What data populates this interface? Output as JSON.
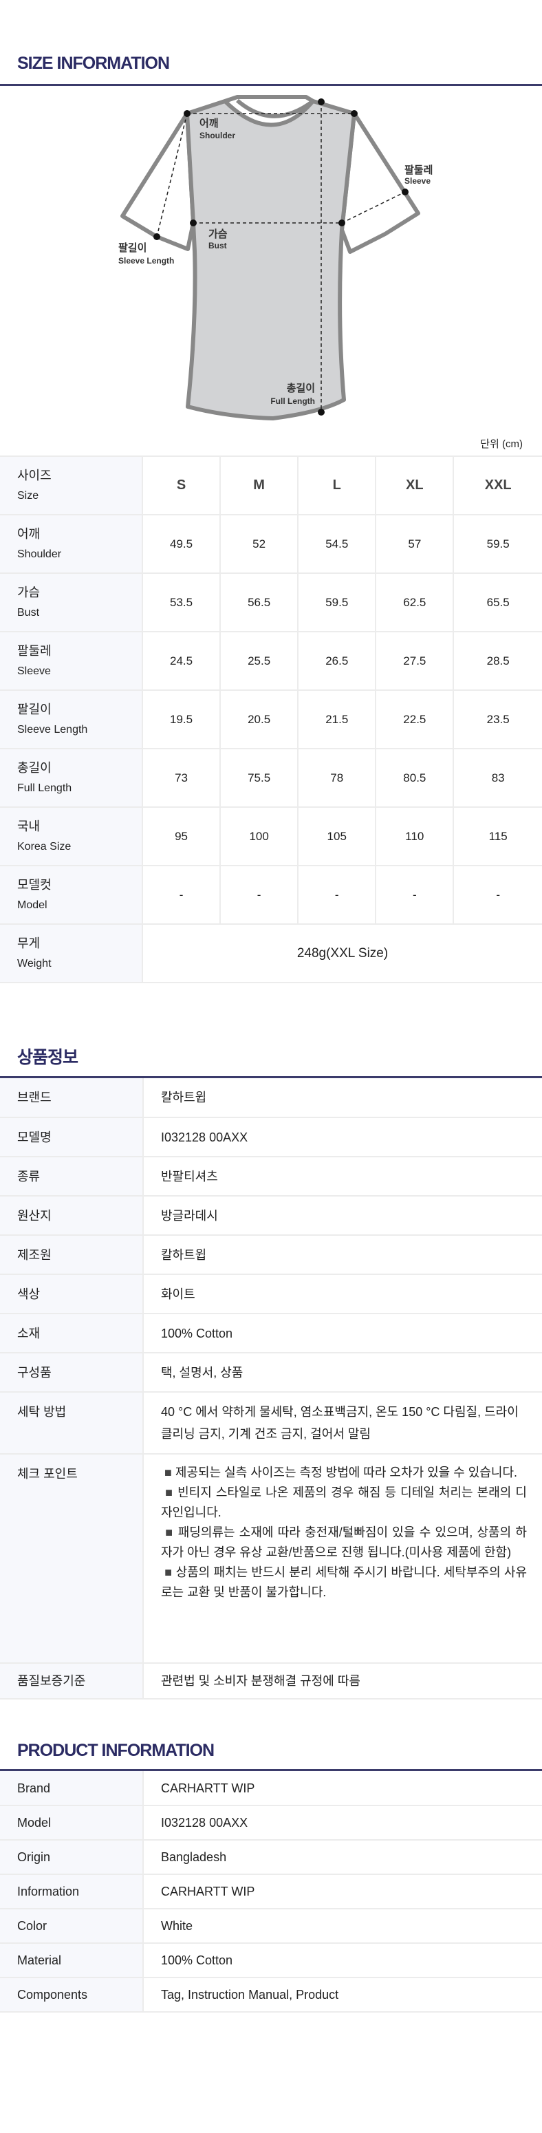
{
  "size_section": {
    "title": "SIZE INFORMATION",
    "unit": "단위 (cm)",
    "diagram_labels": {
      "shoulder": {
        "ko": "어깨",
        "en": "Shoulder"
      },
      "sleeve": {
        "ko": "팔둘레",
        "en": "Sleeve"
      },
      "bust": {
        "ko": "가슴",
        "en": "Bust"
      },
      "sleeve_length": {
        "ko": "팔길이",
        "en": "Sleeve Length"
      },
      "full_length": {
        "ko": "총길이",
        "en": "Full Length"
      }
    },
    "header": {
      "ko": "사이즈",
      "en": "Size",
      "sizes": [
        "S",
        "M",
        "L",
        "XL",
        "XXL"
      ]
    },
    "rows": [
      {
        "ko": "어깨",
        "en": "Shoulder",
        "values": [
          "49.5",
          "52",
          "54.5",
          "57",
          "59.5"
        ]
      },
      {
        "ko": "가슴",
        "en": "Bust",
        "values": [
          "53.5",
          "56.5",
          "59.5",
          "62.5",
          "65.5"
        ]
      },
      {
        "ko": "팔둘레",
        "en": "Sleeve",
        "values": [
          "24.5",
          "25.5",
          "26.5",
          "27.5",
          "28.5"
        ]
      },
      {
        "ko": "팔길이",
        "en": "Sleeve Length",
        "values": [
          "19.5",
          "20.5",
          "21.5",
          "22.5",
          "23.5"
        ]
      },
      {
        "ko": "총길이",
        "en": "Full Length",
        "values": [
          "73",
          "75.5",
          "78",
          "80.5",
          "83"
        ]
      },
      {
        "ko": "국내",
        "en": "Korea Size",
        "values": [
          "95",
          "100",
          "105",
          "110",
          "115"
        ]
      },
      {
        "ko": "모델컷",
        "en": "Model",
        "values": [
          "-",
          "-",
          "-",
          "-",
          "-"
        ]
      }
    ],
    "weight": {
      "ko": "무게",
      "en": "Weight",
      "value": "248g(XXL Size)"
    }
  },
  "kr_info": {
    "title": "상품정보",
    "rows": [
      {
        "k": "브랜드",
        "v": "칼하트윕"
      },
      {
        "k": "모델명",
        "v": "I032128 00AXX"
      },
      {
        "k": "종류",
        "v": "반팔티셔츠"
      },
      {
        "k": "원산지",
        "v": "방글라데시"
      },
      {
        "k": "제조원",
        "v": "칼하트윕"
      },
      {
        "k": "색상",
        "v": "화이트"
      },
      {
        "k": "소재",
        "v": "100% Cotton"
      },
      {
        "k": "구성품",
        "v": "택, 설명서, 상품"
      },
      {
        "k": "세탁 방법",
        "v": "40 °C 에서 약하게 물세탁, 염소표백금지, 온도 150 °C 다림질, 드라이클리닝 금지, 기계 건조 금지, 걸어서 말림"
      }
    ],
    "check": {
      "k": "체크 포인트",
      "points": [
        "제공되는 실측 사이즈는 측정 방법에 따라 오차가 있을 수 있습니다.",
        "빈티지 스타일로 나온 제품의 경우 해짐 등 디테일 처리는 본래의 디자인입니다.",
        "패딩의류는 소재에 따라 충전재/털빠짐이 있을 수 있으며, 상품의 하자가 아닌 경우 유상 교환/반품으로 진행 됩니다.(미사용 제품에 한함)",
        "상품의 패치는 반드시 분리 세탁해 주시기 바랍니다. 세탁부주의 사유로는 교환 및 반품이 불가합니다."
      ],
      "bullet": "■"
    },
    "quality": {
      "k": "품질보증기준",
      "v": "관련법 및 소비자 분쟁해결 규정에 따름"
    }
  },
  "en_info": {
    "title": "PRODUCT INFORMATION",
    "rows": [
      {
        "k": "Brand",
        "v": "CARHARTT WIP"
      },
      {
        "k": "Model",
        "v": "I032128 00AXX"
      },
      {
        "k": "Origin",
        "v": "Bangladesh"
      },
      {
        "k": "Information",
        "v": "CARHARTT WIP"
      },
      {
        "k": "Color",
        "v": "White"
      },
      {
        "k": "Material",
        "v": "100% Cotton"
      },
      {
        "k": "Components",
        "v": "Tag, Instruction Manual, Product"
      }
    ]
  },
  "colors": {
    "accent": "#2b2b63",
    "header_bg": "#f7f8fc",
    "shirt_fill": "#d2d3d5",
    "shirt_outline": "#888888"
  }
}
